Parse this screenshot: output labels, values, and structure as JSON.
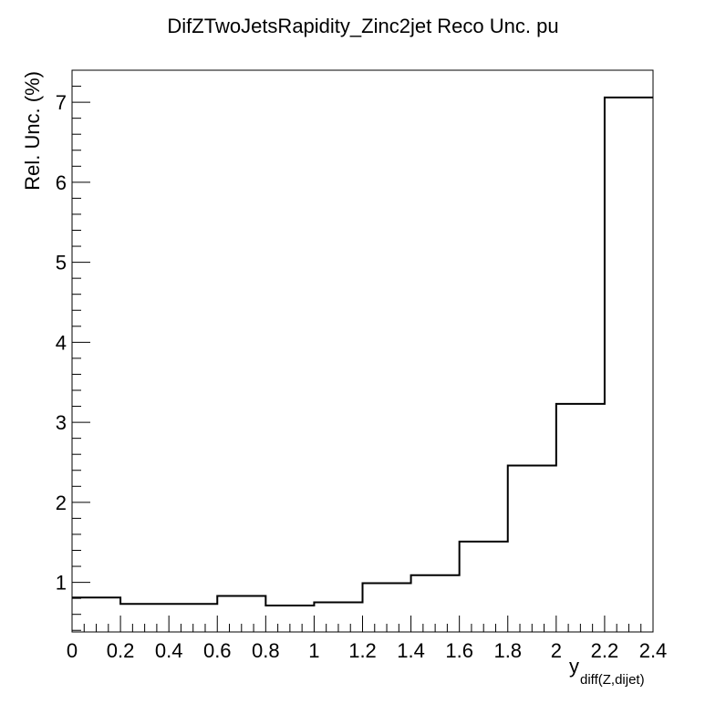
{
  "chart_data": {
    "type": "histogram-step",
    "title": "DifZTwoJetsRapidity_Zinc2jet Reco Unc. pu",
    "ylabel": "Rel. Unc. (%)",
    "xlabel_main": "y",
    "xlabel_sub": "diff(Z,dijet)",
    "xlim": [
      0,
      2.4
    ],
    "ylim": [
      0.38,
      7.4
    ],
    "x_ticks": [
      "0",
      "0.2",
      "0.4",
      "0.6",
      "0.8",
      "1",
      "1.2",
      "1.4",
      "1.6",
      "1.8",
      "2",
      "2.2",
      "2.4"
    ],
    "y_ticks": [
      "1",
      "2",
      "3",
      "4",
      "5",
      "6",
      "7"
    ],
    "bin_edges": [
      0,
      0.2,
      0.4,
      0.6,
      0.8,
      1.0,
      1.2,
      1.4,
      1.6,
      1.8,
      2.0,
      2.2,
      2.4
    ],
    "values": [
      0.81,
      0.73,
      0.73,
      0.83,
      0.71,
      0.75,
      0.99,
      1.09,
      1.51,
      2.46,
      3.23,
      7.06
    ],
    "line_color": "#000000"
  }
}
